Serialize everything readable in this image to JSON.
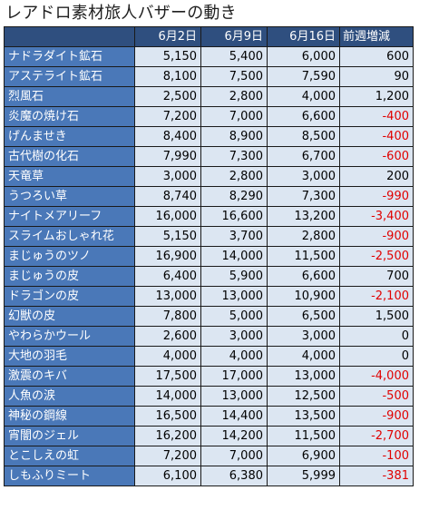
{
  "title": "レアドロ素材旅人バザーの動き",
  "headers": [
    "",
    "6月2日",
    "6月9日",
    "6月16日",
    "前週増減"
  ],
  "rows": [
    {
      "name": "ナドラダイト鉱石",
      "v1": "5,150",
      "v2": "5,400",
      "v3": "6,000",
      "diff": "600",
      "neg": false
    },
    {
      "name": "アステライト鉱石",
      "v1": "8,100",
      "v2": "7,500",
      "v3": "7,590",
      "diff": "90",
      "neg": false
    },
    {
      "name": "烈風石",
      "v1": "2,500",
      "v2": "2,800",
      "v3": "4,000",
      "diff": "1,200",
      "neg": false
    },
    {
      "name": "炎魔の焼け石",
      "v1": "7,200",
      "v2": "7,000",
      "v3": "6,600",
      "diff": "-400",
      "neg": true
    },
    {
      "name": "げんませき",
      "v1": "8,400",
      "v2": "8,900",
      "v3": "8,500",
      "diff": "-400",
      "neg": true
    },
    {
      "name": "古代樹の化石",
      "v1": "7,990",
      "v2": "7,300",
      "v3": "6,700",
      "diff": "-600",
      "neg": true
    },
    {
      "name": "天竜草",
      "v1": "3,000",
      "v2": "2,800",
      "v3": "3,000",
      "diff": "200",
      "neg": false
    },
    {
      "name": "うつろい草",
      "v1": "8,740",
      "v2": "8,290",
      "v3": "7,300",
      "diff": "-990",
      "neg": true
    },
    {
      "name": "ナイトメアリーフ",
      "v1": "16,000",
      "v2": "16,600",
      "v3": "13,200",
      "diff": "-3,400",
      "neg": true
    },
    {
      "name": "スライムおしゃれ花",
      "v1": "5,150",
      "v2": "3,700",
      "v3": "2,800",
      "diff": "-900",
      "neg": true
    },
    {
      "name": "まじゅうのツノ",
      "v1": "16,900",
      "v2": "14,000",
      "v3": "11,500",
      "diff": "-2,500",
      "neg": true
    },
    {
      "name": "まじゅうの皮",
      "v1": "6,400",
      "v2": "5,900",
      "v3": "6,600",
      "diff": "700",
      "neg": false
    },
    {
      "name": "ドラゴンの皮",
      "v1": "13,000",
      "v2": "13,000",
      "v3": "10,900",
      "diff": "-2,100",
      "neg": true
    },
    {
      "name": "幻獣の皮",
      "v1": "7,800",
      "v2": "5,000",
      "v3": "6,500",
      "diff": "1,500",
      "neg": false
    },
    {
      "name": "やわらかウール",
      "v1": "2,600",
      "v2": "3,000",
      "v3": "3,000",
      "diff": "0",
      "neg": false
    },
    {
      "name": "大地の羽毛",
      "v1": "4,000",
      "v2": "4,000",
      "v3": "4,000",
      "diff": "0",
      "neg": false
    },
    {
      "name": "激震のキバ",
      "v1": "17,500",
      "v2": "17,000",
      "v3": "13,000",
      "diff": "-4,000",
      "neg": true
    },
    {
      "name": "人魚の涙",
      "v1": "14,000",
      "v2": "13,000",
      "v3": "12,500",
      "diff": "-500",
      "neg": true
    },
    {
      "name": "神秘の鋼線",
      "v1": "16,500",
      "v2": "14,400",
      "v3": "13,500",
      "diff": "-900",
      "neg": true
    },
    {
      "name": "宵闇のジェル",
      "v1": "16,200",
      "v2": "14,200",
      "v3": "11,500",
      "diff": "-2,700",
      "neg": true
    },
    {
      "name": "とこしえの虹",
      "v1": "7,200",
      "v2": "7,000",
      "v3": "6,900",
      "diff": "-100",
      "neg": true
    },
    {
      "name": "しもふりミート",
      "v1": "6,100",
      "v2": "6,380",
      "v3": "5,999",
      "diff": "-381",
      "neg": true
    }
  ],
  "colors": {
    "header_bg": "#2f4f7f",
    "name_bg": "#4a78b8",
    "cell_bg": "#dce6f2",
    "negative": "#e00000"
  }
}
